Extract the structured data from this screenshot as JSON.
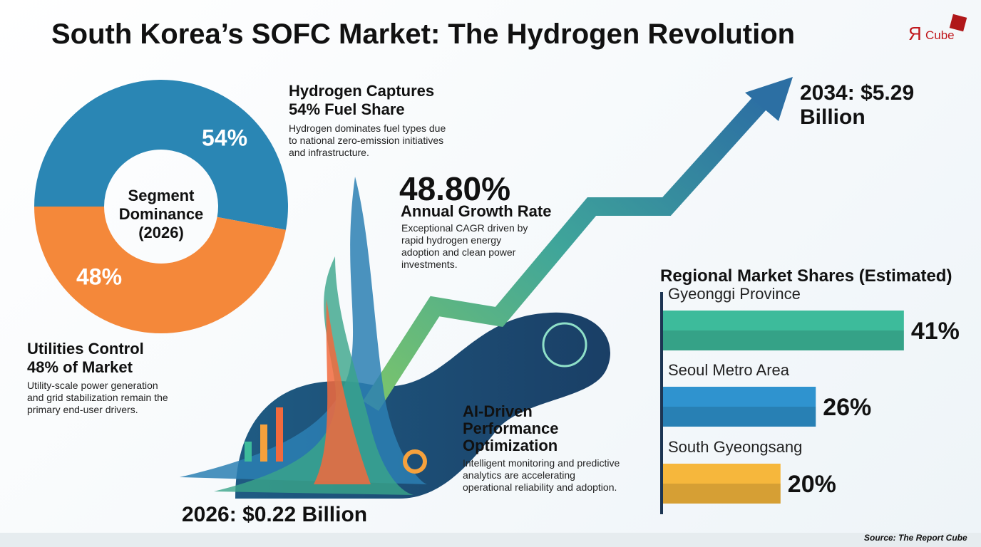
{
  "header": {
    "title": "South Korea’s SOFC Market: The Hydrogen Revolution",
    "logo_mark": "Я",
    "logo_text": "Cube"
  },
  "chart_data": [
    {
      "type": "pie",
      "title": "Segment Dominance (2026)",
      "values": [
        54,
        48
      ],
      "value_labels": [
        "54%",
        "48%"
      ],
      "colors": [
        "#2a86b4",
        "#f4883a"
      ]
    },
    {
      "type": "bar",
      "title": "Regional Market Shares (Estimated)",
      "categories": [
        "Gyeonggi Province",
        "Seoul Metro Area",
        "South Gyeongsang"
      ],
      "values": [
        41,
        26,
        20
      ],
      "value_labels": [
        "41%",
        "26%",
        "20%"
      ],
      "colors": [
        "#3dbb9b",
        "#2f93cf",
        "#f6b73c"
      ],
      "xlim": [
        0,
        50
      ]
    }
  ],
  "hydrogen": {
    "title": "Hydrogen Captures 54% Fuel Share",
    "body": "Hydrogen dominates fuel types due to national zero-emission initiatives and infrastructure."
  },
  "growth": {
    "value": "48.80%",
    "label": "Annual Growth Rate",
    "body": "Exceptional CAGR driven by rapid hydrogen energy adoption and clean power investments."
  },
  "utilities": {
    "title": "Utilities Control 48% of Market",
    "body": "Utility-scale power generation and grid stabilization remain the primary end-user drivers."
  },
  "forecast": {
    "start": "2026: $0.22 Billion",
    "end": "2034: $5.29 Billion"
  },
  "ai": {
    "title": "AI-Driven Performance Optimization",
    "body": "Intelligent monitoring and predictive analytics are accelerating operational reliability and adoption."
  },
  "source": "Source: The Report Cube"
}
